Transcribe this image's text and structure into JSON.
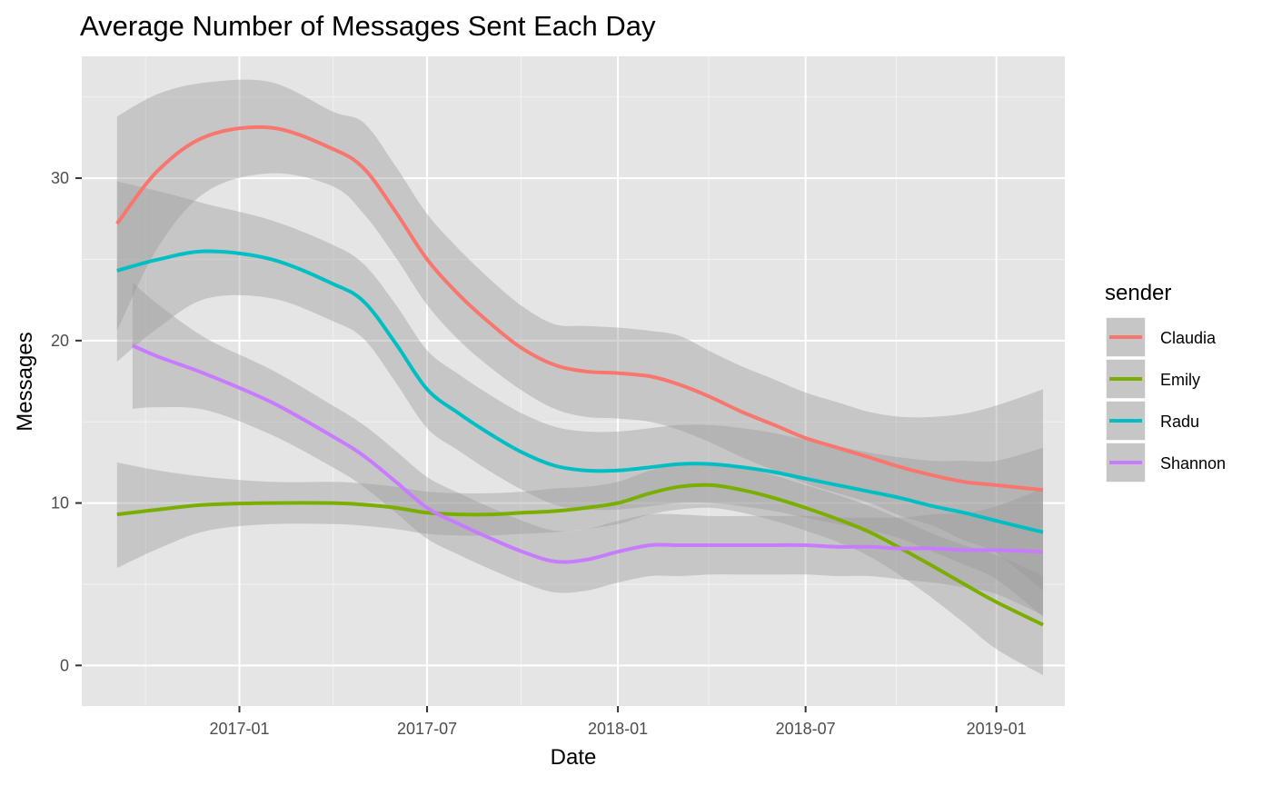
{
  "chart_data": {
    "type": "line",
    "title": "Average Number of Messages Sent Each Day",
    "xlabel": "Date",
    "ylabel": "Messages",
    "x_ticks": [
      "2017-01",
      "2017-07",
      "2018-01",
      "2018-07",
      "2019-01"
    ],
    "y_ticks": [
      0,
      10,
      20,
      30
    ],
    "xlim": [
      "2016-08-02",
      "2019-03-08"
    ],
    "ylim": [
      -2.5,
      37.5
    ],
    "grid": true,
    "background": "#e5e5e5",
    "legend": {
      "title": "sender",
      "position": "right"
    },
    "band_color": "#999999",
    "series": [
      {
        "name": "Claudia",
        "color": "#f8766d",
        "points": [
          [
            "2016-09-05",
            27.2,
            20.6,
            33.8
          ],
          [
            "2016-10-15",
            30.5,
            25.8,
            35.2
          ],
          [
            "2016-12-01",
            32.6,
            29.2,
            35.9
          ],
          [
            "2017-02-01",
            33.1,
            30.3,
            35.9
          ],
          [
            "2017-04-01",
            31.8,
            29.5,
            34.1
          ],
          [
            "2017-05-01",
            30.6,
            27.8,
            33.4
          ],
          [
            "2017-06-01",
            27.9,
            25.1,
            30.7
          ],
          [
            "2017-07-01",
            25.0,
            22.2,
            27.8
          ],
          [
            "2017-08-01",
            22.8,
            20.0,
            25.6
          ],
          [
            "2017-09-01",
            21.0,
            18.3,
            23.7
          ],
          [
            "2017-10-01",
            19.5,
            16.9,
            22.1
          ],
          [
            "2017-11-01",
            18.5,
            15.8,
            21.0
          ],
          [
            "2017-12-01",
            18.1,
            15.3,
            20.9
          ],
          [
            "2018-01-01",
            18.0,
            15.2,
            20.8
          ],
          [
            "2018-02-01",
            17.8,
            15.0,
            20.6
          ],
          [
            "2018-03-01",
            17.3,
            14.5,
            20.3
          ],
          [
            "2018-04-01",
            16.5,
            13.7,
            19.3
          ],
          [
            "2018-05-01",
            15.6,
            12.8,
            18.4
          ],
          [
            "2018-06-01",
            14.8,
            12.0,
            17.6
          ],
          [
            "2018-07-01",
            14.0,
            11.2,
            16.8
          ],
          [
            "2018-08-01",
            13.4,
            10.6,
            16.2
          ],
          [
            "2018-09-01",
            12.8,
            10.0,
            15.6
          ],
          [
            "2018-10-01",
            12.2,
            9.2,
            15.3
          ],
          [
            "2018-11-01",
            11.7,
            8.6,
            15.3
          ],
          [
            "2018-12-01",
            11.3,
            7.7,
            15.5
          ],
          [
            "2019-01-01",
            11.1,
            6.9,
            16.0
          ],
          [
            "2019-02-15",
            10.8,
            4.6,
            17.0
          ]
        ]
      },
      {
        "name": "Emily",
        "color": "#7cae00",
        "points": [
          [
            "2016-09-05",
            9.3,
            6.0,
            12.5
          ],
          [
            "2016-10-15",
            9.6,
            7.2,
            12.0
          ],
          [
            "2016-12-01",
            9.9,
            8.3,
            11.6
          ],
          [
            "2017-02-01",
            10.0,
            8.7,
            11.3
          ],
          [
            "2017-04-01",
            10.0,
            8.7,
            11.3
          ],
          [
            "2017-05-01",
            9.9,
            8.6,
            11.2
          ],
          [
            "2017-06-01",
            9.7,
            8.4,
            11.0
          ],
          [
            "2017-07-01",
            9.4,
            8.1,
            10.7
          ],
          [
            "2017-08-01",
            9.3,
            8.0,
            10.6
          ],
          [
            "2017-09-01",
            9.3,
            8.0,
            10.6
          ],
          [
            "2017-10-01",
            9.4,
            8.1,
            10.7
          ],
          [
            "2017-11-01",
            9.5,
            8.2,
            10.9
          ],
          [
            "2017-12-01",
            9.7,
            8.4,
            11.0
          ],
          [
            "2018-01-01",
            10.0,
            8.7,
            11.3
          ],
          [
            "2018-02-01",
            10.6,
            9.3,
            12.0
          ],
          [
            "2018-03-01",
            11.0,
            9.6,
            12.4
          ],
          [
            "2018-04-01",
            11.1,
            9.7,
            12.5
          ],
          [
            "2018-05-01",
            10.8,
            9.4,
            12.2
          ],
          [
            "2018-06-01",
            10.3,
            8.9,
            11.7
          ],
          [
            "2018-07-01",
            9.7,
            8.3,
            11.1
          ],
          [
            "2018-08-01",
            9.0,
            7.6,
            10.5
          ],
          [
            "2018-09-01",
            8.2,
            6.7,
            9.8
          ],
          [
            "2018-10-01",
            7.2,
            5.5,
            9.0
          ],
          [
            "2018-11-01",
            6.1,
            4.1,
            8.1
          ],
          [
            "2018-12-01",
            5.0,
            2.6,
            7.4
          ],
          [
            "2019-01-01",
            3.9,
            1.0,
            6.8
          ],
          [
            "2019-02-15",
            2.5,
            -0.6,
            5.5
          ]
        ]
      },
      {
        "name": "Radu",
        "color": "#00bfc4",
        "points": [
          [
            "2016-09-05",
            24.3,
            18.7,
            29.8
          ],
          [
            "2016-10-15",
            25.0,
            20.8,
            29.2
          ],
          [
            "2016-12-01",
            25.5,
            22.6,
            28.4
          ],
          [
            "2017-02-01",
            25.0,
            22.6,
            27.4
          ],
          [
            "2017-04-01",
            23.5,
            21.2,
            25.9
          ],
          [
            "2017-05-01",
            22.4,
            20.1,
            24.7
          ],
          [
            "2017-06-01",
            19.8,
            17.4,
            22.2
          ],
          [
            "2017-07-01",
            17.0,
            14.6,
            19.4
          ],
          [
            "2017-08-01",
            15.5,
            13.2,
            17.9
          ],
          [
            "2017-09-01",
            14.2,
            11.9,
            16.6
          ],
          [
            "2017-10-01",
            13.1,
            10.8,
            15.5
          ],
          [
            "2017-11-01",
            12.3,
            9.9,
            14.7
          ],
          [
            "2017-12-01",
            12.0,
            9.6,
            14.4
          ],
          [
            "2018-01-01",
            12.0,
            9.6,
            14.4
          ],
          [
            "2018-02-01",
            12.2,
            9.8,
            14.6
          ],
          [
            "2018-03-01",
            12.4,
            10.0,
            14.8
          ],
          [
            "2018-04-01",
            12.4,
            10.0,
            14.8
          ],
          [
            "2018-05-01",
            12.2,
            9.8,
            14.6
          ],
          [
            "2018-06-01",
            11.9,
            9.5,
            14.3
          ],
          [
            "2018-07-01",
            11.5,
            9.1,
            13.9
          ],
          [
            "2018-08-01",
            11.1,
            8.7,
            13.5
          ],
          [
            "2018-09-01",
            10.7,
            8.3,
            13.1
          ],
          [
            "2018-10-01",
            10.3,
            7.8,
            12.8
          ],
          [
            "2018-11-01",
            9.8,
            7.0,
            12.6
          ],
          [
            "2018-12-01",
            9.4,
            6.2,
            12.6
          ],
          [
            "2019-01-01",
            8.9,
            5.3,
            12.6
          ],
          [
            "2019-02-15",
            8.2,
            3.0,
            13.4
          ]
        ]
      },
      {
        "name": "Shannon",
        "color": "#c77cff",
        "points": [
          [
            "2016-09-20",
            19.7,
            15.8,
            23.6
          ],
          [
            "2016-10-15",
            19.0,
            15.9,
            22.2
          ],
          [
            "2016-12-01",
            17.9,
            15.7,
            20.1
          ],
          [
            "2017-02-01",
            16.2,
            14.2,
            18.2
          ],
          [
            "2017-04-01",
            14.1,
            12.2,
            16.0
          ],
          [
            "2017-05-01",
            12.9,
            11.0,
            14.8
          ],
          [
            "2017-06-01",
            11.3,
            9.4,
            13.2
          ],
          [
            "2017-07-01",
            9.7,
            7.8,
            11.6
          ],
          [
            "2017-08-01",
            8.7,
            6.8,
            10.6
          ],
          [
            "2017-09-01",
            7.8,
            5.9,
            9.7
          ],
          [
            "2017-10-01",
            7.0,
            5.1,
            8.9
          ],
          [
            "2017-11-01",
            6.4,
            4.5,
            8.3
          ],
          [
            "2017-12-01",
            6.5,
            4.6,
            8.4
          ],
          [
            "2018-01-01",
            7.0,
            5.1,
            8.9
          ],
          [
            "2018-02-01",
            7.4,
            5.5,
            9.3
          ],
          [
            "2018-03-01",
            7.4,
            5.5,
            9.3
          ],
          [
            "2018-04-01",
            7.4,
            5.6,
            9.2
          ],
          [
            "2018-05-01",
            7.4,
            5.6,
            9.2
          ],
          [
            "2018-06-01",
            7.4,
            5.6,
            9.2
          ],
          [
            "2018-07-01",
            7.4,
            5.6,
            9.2
          ],
          [
            "2018-08-01",
            7.3,
            5.5,
            9.1
          ],
          [
            "2018-09-01",
            7.3,
            5.5,
            9.1
          ],
          [
            "2018-10-01",
            7.2,
            5.3,
            9.1
          ],
          [
            "2018-11-01",
            7.2,
            5.1,
            9.3
          ],
          [
            "2018-12-01",
            7.1,
            4.8,
            9.4
          ],
          [
            "2019-01-01",
            7.1,
            4.4,
            9.8
          ],
          [
            "2019-02-15",
            7.0,
            3.1,
            10.9
          ]
        ]
      }
    ]
  }
}
